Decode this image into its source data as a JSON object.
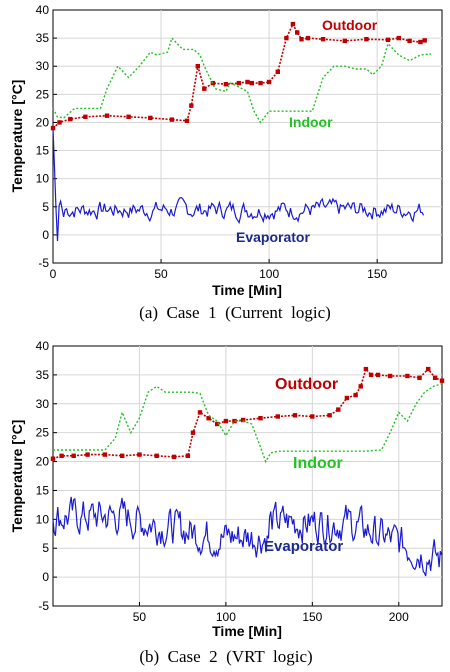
{
  "chart_data": [
    {
      "type": "line",
      "caption": "(a)  Case  1  (Current  logic)",
      "xlabel": "Time [Min]",
      "ylabel": "Temperature [°C]",
      "xlim": [
        0,
        180
      ],
      "ylim": [
        -5,
        40
      ],
      "xticks": [
        0,
        50,
        100,
        150
      ],
      "yticks": [
        -5,
        0,
        5,
        10,
        15,
        20,
        25,
        30,
        35,
        40
      ],
      "grid": true,
      "series": [
        {
          "name": "Outdoor",
          "color": "#c00000",
          "style": "dotted-square",
          "x": [
            0,
            3,
            8,
            15,
            25,
            35,
            45,
            55,
            62,
            64,
            67,
            70,
            74,
            80,
            86,
            90,
            92,
            96,
            100,
            104,
            108,
            111,
            113,
            115,
            118,
            125,
            135,
            145,
            155,
            160,
            165,
            170,
            172
          ],
          "y": [
            19,
            20,
            20.6,
            21,
            21.2,
            21,
            20.8,
            20.5,
            20.3,
            23,
            30,
            26,
            27,
            26.8,
            27,
            27.2,
            27,
            27,
            27.2,
            29,
            35,
            37.5,
            36,
            34.8,
            35,
            34.8,
            34.5,
            34.8,
            34.7,
            35,
            34.5,
            34.3,
            34.6
          ]
        },
        {
          "name": "Indoor",
          "color": "#22c222",
          "style": "dotted",
          "x": [
            0,
            2,
            5,
            10,
            22,
            25,
            30,
            35,
            40,
            45,
            48,
            53,
            55,
            60,
            65,
            68,
            70,
            75,
            80,
            82,
            85,
            90,
            93,
            96,
            100,
            105,
            115,
            120,
            125,
            130,
            135,
            140,
            145,
            148,
            152,
            155,
            160,
            165,
            170,
            175
          ],
          "y": [
            22.5,
            21,
            20.8,
            22.5,
            22.5,
            26,
            30,
            28,
            30,
            32.5,
            32,
            32.5,
            35,
            33,
            33,
            32,
            30,
            26,
            25.5,
            27,
            26.5,
            25.5,
            22,
            20,
            22,
            22,
            22,
            22,
            28,
            30,
            30,
            29.5,
            29.5,
            28.5,
            30,
            34,
            32,
            31,
            32,
            32.2
          ]
        }
      ],
      "evaporator": {
        "name": "Evaporator",
        "color": "#1a1ad0",
        "style": "solid-noisy",
        "mean": 4.5,
        "amplitude": 1.2,
        "initial_dip_min": -3,
        "x_end": 172
      }
    },
    {
      "type": "line",
      "caption": "(b)  Case  2  (VRT  logic)",
      "xlabel": "Time [Min]",
      "ylabel": "Temperature [°C]",
      "xlim": [
        0,
        225
      ],
      "ylim": [
        -5,
        40
      ],
      "xticks": [
        50,
        100,
        150,
        200
      ],
      "yticks": [
        -5,
        0,
        5,
        10,
        15,
        20,
        25,
        30,
        35,
        40
      ],
      "grid": true,
      "series": [
        {
          "name": "Outdoor",
          "color": "#c00000",
          "style": "dotted-square",
          "x": [
            0,
            5,
            12,
            20,
            30,
            40,
            50,
            60,
            70,
            78,
            81,
            85,
            90,
            95,
            100,
            105,
            110,
            120,
            130,
            140,
            150,
            160,
            165,
            170,
            175,
            178,
            181,
            184,
            188,
            195,
            205,
            212,
            217,
            221,
            225
          ],
          "y": [
            20.5,
            21,
            21,
            21.2,
            21.2,
            21,
            21.2,
            21,
            20.8,
            21,
            25,
            28.5,
            27.5,
            26.5,
            27,
            27,
            27.2,
            27.5,
            27.8,
            28,
            27.8,
            28,
            29,
            31,
            31.5,
            33,
            36,
            35,
            35,
            34.8,
            34.8,
            34.5,
            36,
            34.5,
            34
          ]
        },
        {
          "name": "Indoor",
          "color": "#22c222",
          "style": "dotted",
          "x": [
            0,
            10,
            20,
            30,
            36,
            40,
            45,
            50,
            55,
            60,
            65,
            70,
            75,
            80,
            85,
            90,
            95,
            100,
            105,
            110,
            115,
            120,
            123,
            126,
            130,
            140,
            150,
            160,
            165,
            170,
            180,
            190,
            195,
            200,
            205,
            210,
            215,
            220,
            225
          ],
          "y": [
            22,
            22,
            22,
            22,
            24,
            28.5,
            25,
            27.5,
            32,
            33,
            32,
            32,
            32,
            32,
            31.8,
            28,
            27,
            24.5,
            27,
            27,
            26.5,
            22.5,
            20,
            21.5,
            21.8,
            21.8,
            21.8,
            21.8,
            21.8,
            21.8,
            21.8,
            22,
            25,
            28.5,
            27,
            30,
            32,
            33,
            33.5
          ]
        }
      ],
      "evaporator": {
        "name": "Evaporator",
        "color": "#1a1ad0",
        "style": "solid-noisy",
        "mean": 9.5,
        "amplitude": 2.2,
        "x_end": 225
      }
    }
  ],
  "labels": {
    "a": {
      "outdoor": "Outdoor",
      "indoor": "Indoor",
      "evaporator": "Evaporator"
    },
    "b": {
      "outdoor": "Outdoor",
      "indoor": "Indoor",
      "evaporator": "Evaporator"
    }
  }
}
